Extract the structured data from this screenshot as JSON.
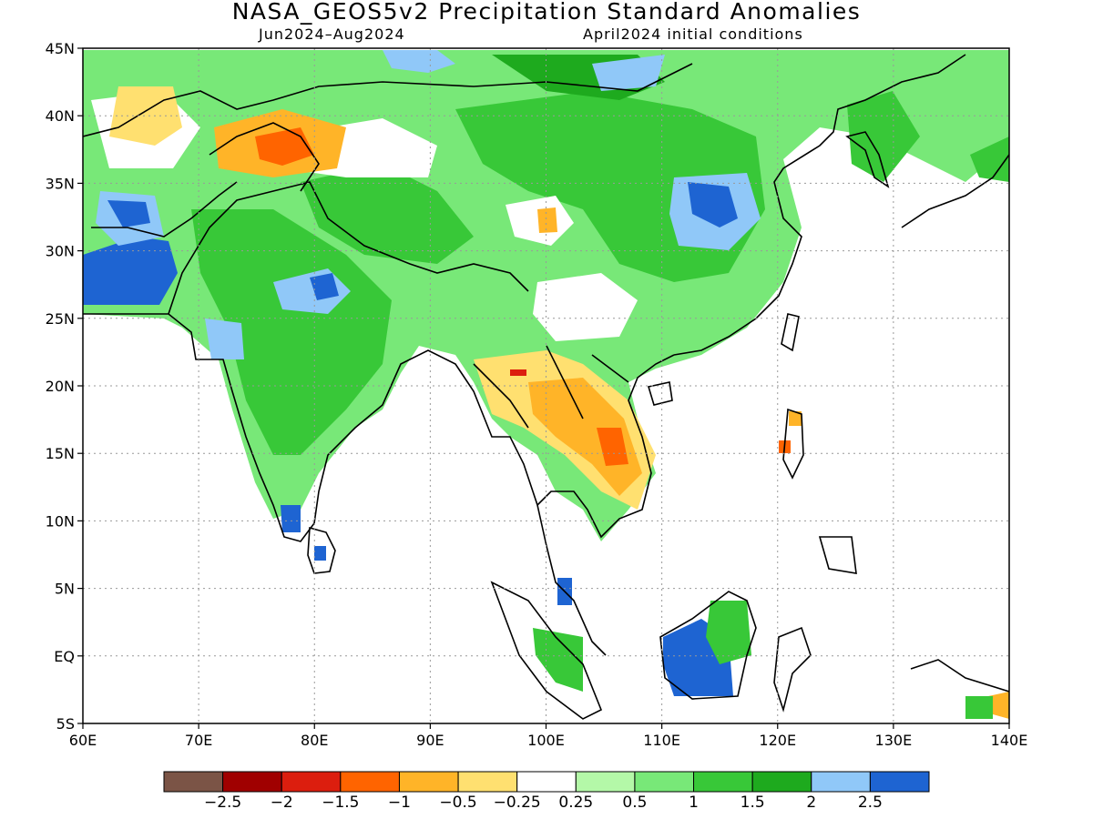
{
  "title": "NASA_GEOS5v2 Precipitation Standard Anomalies",
  "subtitle_left": "Jun2024–Aug2024",
  "subtitle_right": "April2024 initial conditions",
  "lat_labels": [
    "45N",
    "40N",
    "35N",
    "30N",
    "25N",
    "20N",
    "15N",
    "10N",
    "5N",
    "EQ",
    "5S"
  ],
  "lon_labels": [
    "60E",
    "70E",
    "80E",
    "90E",
    "100E",
    "110E",
    "120E",
    "130E",
    "140E"
  ],
  "colorbar": {
    "colors": [
      "#7b5446",
      "#a00000",
      "#dc1e0e",
      "#ff6400",
      "#ffb428",
      "#ffe070",
      "#ffffff",
      "#b4f8a8",
      "#78e878",
      "#38c838",
      "#1eaa1e",
      "#90c8f8",
      "#1e64d2"
    ],
    "labels": [
      "−2.5",
      "−2",
      "−1.5",
      "−1",
      "−0.5",
      "−0.25",
      "0.25",
      "0.5",
      "1",
      "1.5",
      "2",
      "2.5"
    ]
  },
  "colors": {
    "land_outline": "#000000",
    "grid": "#999999",
    "frame": "#000000"
  }
}
